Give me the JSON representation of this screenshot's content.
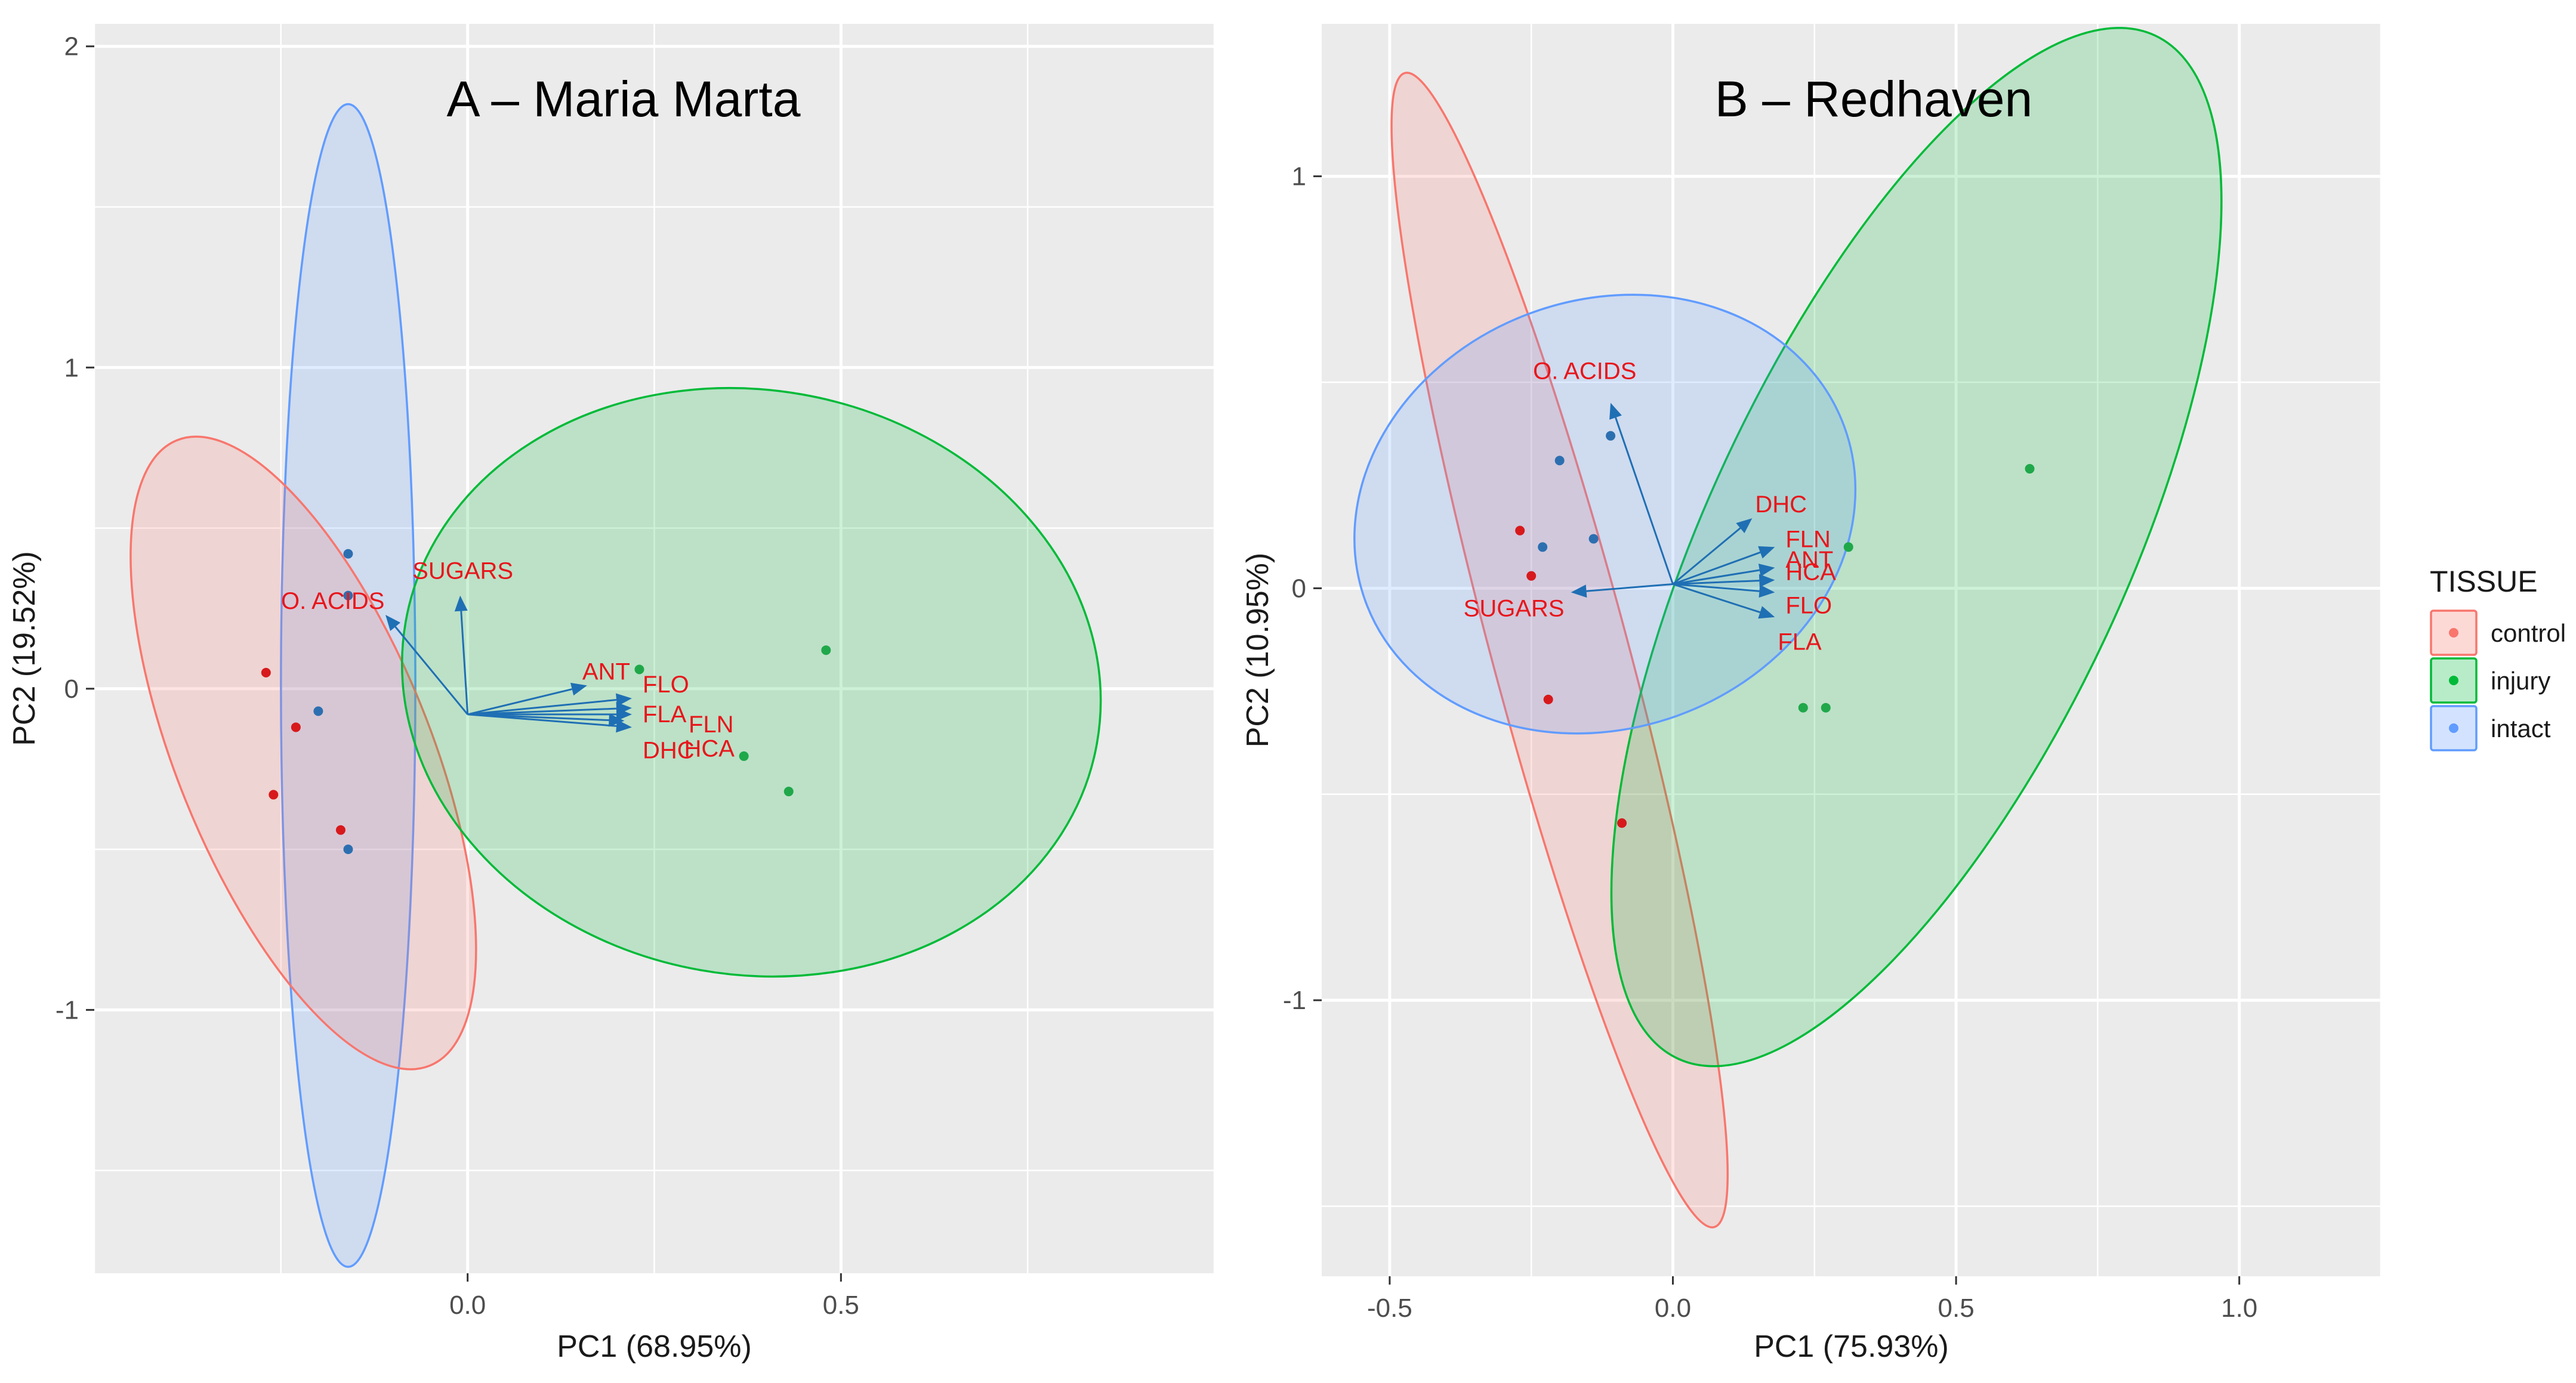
{
  "colors": {
    "panel_bg": "#EBEBEB",
    "grid": "#FFFFFF",
    "control": "#F8766D",
    "injury": "#00BA38",
    "intact": "#619CFF",
    "arrow": "#1F6FB4",
    "var_label": "#E8161B",
    "control_point": "#D7191C",
    "injury_point": "#1FA84A",
    "intact_point": "#2C6FB0"
  },
  "legend": {
    "title": "TISSUE",
    "items": [
      {
        "label": "control",
        "key": "control"
      },
      {
        "label": "injury",
        "key": "injury"
      },
      {
        "label": "intact",
        "key": "intact"
      }
    ]
  },
  "chart_data": [
    {
      "type": "scatter",
      "subtype": "pca-biplot",
      "title": "A – Maria Marta",
      "xlabel": "PC1 (68.95%)",
      "ylabel": "PC2 (19.52%)",
      "xlim": [
        -0.5,
        1.0
      ],
      "ylim": [
        -1.82,
        2.07
      ],
      "xticks": [
        0.0,
        0.5
      ],
      "xtick_labels": [
        "0.0",
        "0.5"
      ],
      "yticks": [
        -1,
        0,
        1,
        2
      ],
      "ytick_labels": [
        "-1",
        "0",
        "1",
        "2"
      ],
      "grid": true,
      "series": [
        {
          "name": "control",
          "points": [
            [
              -0.27,
              0.05
            ],
            [
              -0.23,
              -0.12
            ],
            [
              -0.26,
              -0.33
            ],
            [
              -0.17,
              -0.44
            ]
          ]
        },
        {
          "name": "injury",
          "points": [
            [
              0.23,
              0.06
            ],
            [
              0.48,
              0.12
            ],
            [
              0.37,
              -0.21
            ],
            [
              0.43,
              -0.32
            ]
          ]
        },
        {
          "name": "intact",
          "points": [
            [
              -0.16,
              0.42
            ],
            [
              -0.16,
              0.29
            ],
            [
              -0.2,
              -0.07
            ],
            [
              -0.16,
              -0.5
            ]
          ]
        }
      ],
      "ellipses": [
        {
          "group": "intact",
          "center": [
            -0.16,
            0.01
          ],
          "semi_axes": [
            0.09,
            1.81
          ],
          "rotation_deg": 0
        },
        {
          "group": "control",
          "center": [
            -0.22,
            -0.2
          ],
          "semi_axes": [
            0.17,
            1.05
          ],
          "rotation_deg": -22
        },
        {
          "group": "injury",
          "center": [
            0.38,
            0.02
          ],
          "semi_axes": [
            0.47,
            0.91
          ],
          "rotation_deg": 10
        }
      ],
      "origin": [
        0.0,
        -0.08
      ],
      "loadings": [
        {
          "label": "SUGARS",
          "x": -0.01,
          "y": 0.29
        },
        {
          "label": "O. ACIDS",
          "x": -0.11,
          "y": 0.23
        },
        {
          "label": "ANT",
          "x": 0.16,
          "y": 0.01
        },
        {
          "label": "FLO",
          "x": 0.22,
          "y": -0.03
        },
        {
          "label": "FLA",
          "x": 0.22,
          "y": -0.06
        },
        {
          "label": "FLN",
          "x": 0.22,
          "y": -0.08
        },
        {
          "label": "DHC",
          "x": 0.22,
          "y": -0.12
        },
        {
          "label": "HCA",
          "x": 0.21,
          "y": -0.1
        }
      ]
    },
    {
      "type": "scatter",
      "subtype": "pca-biplot",
      "title": "B – Redhaven",
      "xlabel": "PC1 (75.93%)",
      "ylabel": "PC2 (10.95%)",
      "xlim": [
        -0.62,
        1.25
      ],
      "ylim": [
        -1.67,
        1.37
      ],
      "xticks": [
        -0.5,
        0.0,
        0.5,
        1.0
      ],
      "xtick_labels": [
        "-0.5",
        "0.0",
        "0.5",
        "1.0"
      ],
      "yticks": [
        -1,
        0,
        1
      ],
      "ytick_labels": [
        "-1",
        "0",
        "1"
      ],
      "grid": true,
      "series": [
        {
          "name": "control",
          "points": [
            [
              -0.27,
              0.14
            ],
            [
              -0.25,
              0.03
            ],
            [
              -0.22,
              -0.27
            ],
            [
              -0.09,
              -0.57
            ]
          ]
        },
        {
          "name": "injury",
          "points": [
            [
              0.63,
              0.29
            ],
            [
              0.31,
              0.1
            ],
            [
              0.23,
              -0.29
            ],
            [
              0.27,
              -0.29
            ]
          ]
        },
        {
          "name": "intact",
          "points": [
            [
              -0.11,
              0.37
            ],
            [
              -0.2,
              0.31
            ],
            [
              -0.23,
              0.1
            ],
            [
              -0.14,
              0.12
            ]
          ]
        }
      ],
      "ellipses": [
        {
          "group": "control",
          "center": [
            -0.2,
            -0.15
          ],
          "semi_axes": [
            0.12,
            1.45
          ],
          "rotation_deg": -15
        },
        {
          "group": "injury",
          "center": [
            0.43,
            0.1
          ],
          "semi_axes": [
            0.37,
            1.37
          ],
          "rotation_deg": 25
        },
        {
          "group": "intact",
          "center": [
            -0.12,
            0.18
          ],
          "semi_axes": [
            0.45,
            0.52
          ],
          "rotation_deg": -20
        }
      ],
      "origin": [
        0.0,
        0.01
      ],
      "loadings": [
        {
          "label": "O. ACIDS",
          "x": -0.11,
          "y": 0.45
        },
        {
          "label": "DHC",
          "x": 0.14,
          "y": 0.17
        },
        {
          "label": "FLN",
          "x": 0.18,
          "y": 0.1
        },
        {
          "label": "ANT",
          "x": 0.18,
          "y": 0.05
        },
        {
          "label": "HCA",
          "x": 0.18,
          "y": 0.02
        },
        {
          "label": "FLO",
          "x": 0.18,
          "y": -0.01
        },
        {
          "label": "FLA",
          "x": 0.18,
          "y": -0.07
        },
        {
          "label": "SUGARS",
          "x": -0.18,
          "y": -0.01
        }
      ]
    }
  ]
}
